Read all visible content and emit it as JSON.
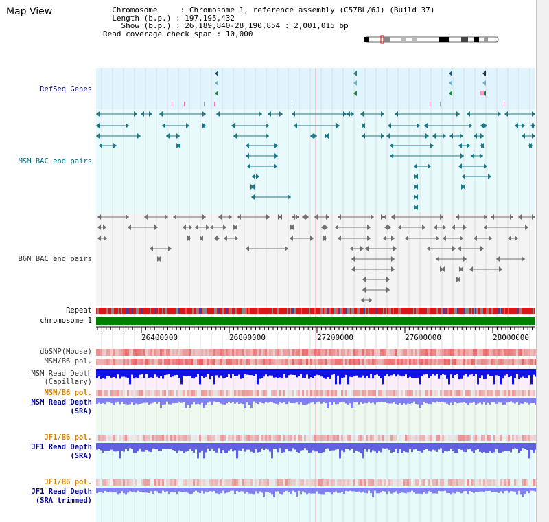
{
  "window_title": "Map View",
  "info_lines": [
    "  Chromosome     : Chromosome 1, reference assembly (C57BL/6J) (Build 37)",
    "  Length (b.p.) : 197,195,432",
    "    Show (b.p.) : 26,189,840-28,190,854 : 2,001,015 bp",
    "Read coverage check span : 10,000"
  ],
  "tracks": {
    "refseq": "RefSeq Genes",
    "msm_bac": "MSM BAC end pairs",
    "b6n_bac": "B6N BAC end pairs",
    "repeat": "Repeat",
    "chromosome": "chromosome 1",
    "dbsnp": "dbSNP(Mouse)",
    "msm_b6_pol_1": "MSM/B6 pol.",
    "msm_depth_cap_1": "MSM Read Depth",
    "msm_depth_cap_2": "(Capillary)",
    "msm_b6_pol_2": "MSM/B6 pol.",
    "msm_depth_sra_1": "MSM Read Depth",
    "msm_depth_sra_2": "(SRA)",
    "jf1_b6_pol_1": "JF1/B6 pol.",
    "jf1_depth_sra_1": "JF1 Read Depth",
    "jf1_depth_sra_2": "(SRA)",
    "jf1_b6_pol_2": "JF1/B6 pol.",
    "jf1_depth_trim_1": "JF1 Read Depth",
    "jf1_depth_trim_2": "(SRA trimmed)"
  },
  "axis_ticks": [
    "26400000",
    "26800000",
    "27200000",
    "27600000",
    "28000000"
  ],
  "region": {
    "start": 26189840,
    "end": 28190854
  },
  "colors": {
    "refseq_bg": "#dff4fc",
    "msm_bg": "#e8fafc",
    "b6n_bg": "#f4f4f4",
    "chromosome": "#008000",
    "repeat": "#d01010",
    "depth_capillary": "#1010e8",
    "depth_sra": "#8080f0",
    "pol": "#f08080",
    "highlight_line": "#f0a0b0"
  }
}
